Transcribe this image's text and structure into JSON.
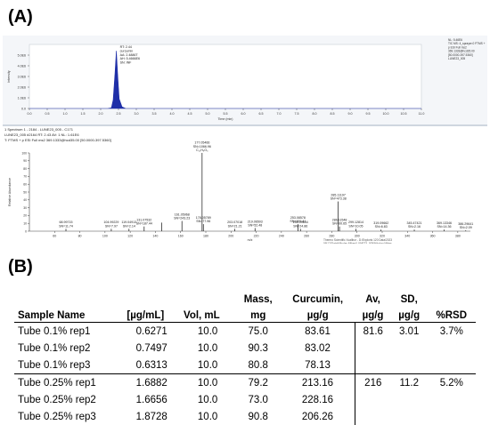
{
  "labels": {
    "panel_a": "(A)",
    "panel_b": "(B)"
  },
  "chart_data": [
    {
      "type": "line",
      "title": "",
      "xlabel": "Time (min)",
      "ylabel": "Intensity",
      "xlim": [
        0,
        11
      ],
      "ylim": [
        0,
        6000000
      ],
      "x_ticks": [
        "0.0",
        "0.5",
        "1.0",
        "1.5",
        "2.0",
        "2.5",
        "3.0",
        "3.5",
        "4.0",
        "4.5",
        "5.0",
        "5.5",
        "6.0",
        "6.5",
        "7.0",
        "7.5",
        "8.0",
        "8.5",
        "9.0",
        "9.5",
        "10.0",
        "10.5",
        "11.0"
      ],
      "y_ticks": [
        {
          "value": 0,
          "label": "0.0"
        },
        {
          "value": 1000000,
          "label": "1.0E6"
        },
        {
          "value": 2000000,
          "label": "2.0E6"
        },
        {
          "value": 3000000,
          "label": "3.0E6"
        },
        {
          "value": 4000000,
          "label": "4.0E6"
        },
        {
          "value": 5000000,
          "label": "5.0E6"
        }
      ],
      "series": [
        {
          "x": [
            0,
            2.2,
            2.3,
            2.35,
            2.4,
            2.44,
            2.48,
            2.52,
            2.6,
            2.7,
            11
          ],
          "y": [
            0,
            0,
            60000,
            800000,
            3200000,
            5400000,
            3000000,
            900000,
            150000,
            0,
            0
          ]
        }
      ],
      "peak_annotation": [
        "RT: 2.44",
        "curcumin",
        "AA: 2.4886T",
        "AH: 5.4666E6",
        "SN: INF"
      ],
      "header_right": [
        "NL: 5.46E6",
        "TIC MS: 4_sprayer.0 FTMS +",
        "p ESI Full ms2",
        "369.1333@hcd35.00",
        "[50.0000-397.5360]",
        "LUNE23_005"
      ]
    },
    {
      "type": "bar",
      "title": "",
      "xlabel": "m/z",
      "ylabel": "Relative Abundance",
      "xlim": [
        40,
        390
      ],
      "ylim": [
        0,
        100
      ],
      "header": [
        "1 Spectrum 1 - 2184 - LUNE23_005 - C171",
        "LUNE23_005 #2164 RT: 2.43 AV: 1 NL: 1.61E6",
        "T: FTMS + p ESI Full ms2 369.1333@hcd35.00 [50.0000-397.5360]"
      ],
      "x_ticks": [
        "60",
        "80",
        "100",
        "120",
        "140",
        "160",
        "180",
        "200",
        "220",
        "240",
        "260",
        "280",
        "300",
        "320",
        "340",
        "360",
        "380"
      ],
      "y_ticks": [
        "0",
        "10",
        "20",
        "30",
        "40",
        "50",
        "60",
        "70",
        "80",
        "90",
        "100"
      ],
      "peaks": [
        {
          "mz": 68.99715,
          "rel": 3,
          "label": [
            "68.99715",
            "SN=11.74"
          ]
        },
        {
          "mz": 104.99229,
          "rel": 3,
          "label": [
            "104.99229",
            "SN=7.97"
          ]
        },
        {
          "mz": 119.04913,
          "rel": 3,
          "label": [
            "119.04913",
            "SN=2.14"
          ]
        },
        {
          "mz": 131.07532,
          "rel": 6,
          "label": [
            "131.07532",
            "SN=187.44"
          ]
        },
        {
          "mz": 145.0496,
          "rel": 11,
          "label": []
        },
        {
          "mz": 161.05968,
          "rel": 13,
          "label": [
            "161.05968",
            "SN=243.23"
          ]
        },
        {
          "mz": 177.05466,
          "rel": 100,
          "label": [
            "177.05466",
            "SN=1066.96",
            "C₁₁H₉O₃"
          ]
        },
        {
          "mz": 178.05789,
          "rel": 9,
          "label": [
            "178.05789",
            "SN=77.96"
          ]
        },
        {
          "mz": 203.07018,
          "rel": 3,
          "label": [
            "203.07018",
            "SN=21.21"
          ]
        },
        {
          "mz": 219.06503,
          "rel": 4,
          "label": [
            "219.06503",
            "SN=52.48"
          ]
        },
        {
          "mz": 253.08578,
          "rel": 9,
          "label": [
            "253.08578",
            "SN=191.41"
          ]
        },
        {
          "mz": 255.09644,
          "rel": 3,
          "label": [
            "255.09644",
            "SN=24.86"
          ]
        },
        {
          "mz": 285.11197,
          "rel": 38,
          "label": [
            "285.11197",
            "SN=473.38"
          ]
        },
        {
          "mz": 286.11548,
          "rel": 6,
          "label": [
            "286.11548",
            "SN=60.65"
          ]
        },
        {
          "mz": 299.12814,
          "rel": 3,
          "label": [
            "299.12814",
            "SN=10.05"
          ]
        },
        {
          "mz": 319.09662,
          "rel": 2,
          "label": [
            "319.09662",
            "SN=6.83"
          ]
        },
        {
          "mz": 345.47421,
          "rel": 2,
          "label": [
            "345.47421",
            "SN=2.16"
          ]
        },
        {
          "mz": 369.13346,
          "rel": 2,
          "label": [
            "369.13346",
            "SN=14.36"
          ]
        },
        {
          "mz": 386.29641,
          "rel": 1,
          "label": [
            "386.29641",
            "SN=2.09"
          ]
        }
      ],
      "footer_note": [
        "Thermo Scientific Xcalibur - D:\\Exploris 120 Data\\2023",
        "06\\12\\Data\\Nikolay Mikes\\LUNE23_005\\Nikolay Mikes"
      ]
    },
    {
      "type": "table",
      "headers": [
        [
          "Sample Name",
          ""
        ],
        [
          "[µg/mL]",
          ""
        ],
        [
          "Vol, mL",
          ""
        ],
        [
          "Mass,",
          "mg"
        ],
        [
          "Curcumin,",
          "µg/g"
        ],
        [
          "Av,",
          "µg/g"
        ],
        [
          "SD,",
          "µg/g"
        ],
        [
          "%RSD",
          ""
        ]
      ],
      "rows": [
        [
          "Tube 0.1% rep1",
          "0.6271",
          "10.0",
          "75.0",
          "83.61",
          "81.6",
          "3.01",
          "3.7%"
        ],
        [
          "Tube 0.1% rep2",
          "0.7497",
          "10.0",
          "90.3",
          "83.02",
          "",
          "",
          ""
        ],
        [
          "Tube 0.1% rep3",
          "0.6313",
          "10.0",
          "80.8",
          "78.13",
          "",
          "",
          ""
        ],
        [
          "Tube 0.25% rep1",
          "1.6882",
          "10.0",
          "79.2",
          "213.16",
          "216",
          "11.2",
          "5.2%"
        ],
        [
          "Tube 0.25% rep2",
          "1.6656",
          "10.0",
          "73.0",
          "228.16",
          "",
          "",
          ""
        ],
        [
          "Tube 0.25% rep3",
          "1.8728",
          "10.0",
          "90.8",
          "206.26",
          "",
          "",
          ""
        ]
      ]
    }
  ]
}
